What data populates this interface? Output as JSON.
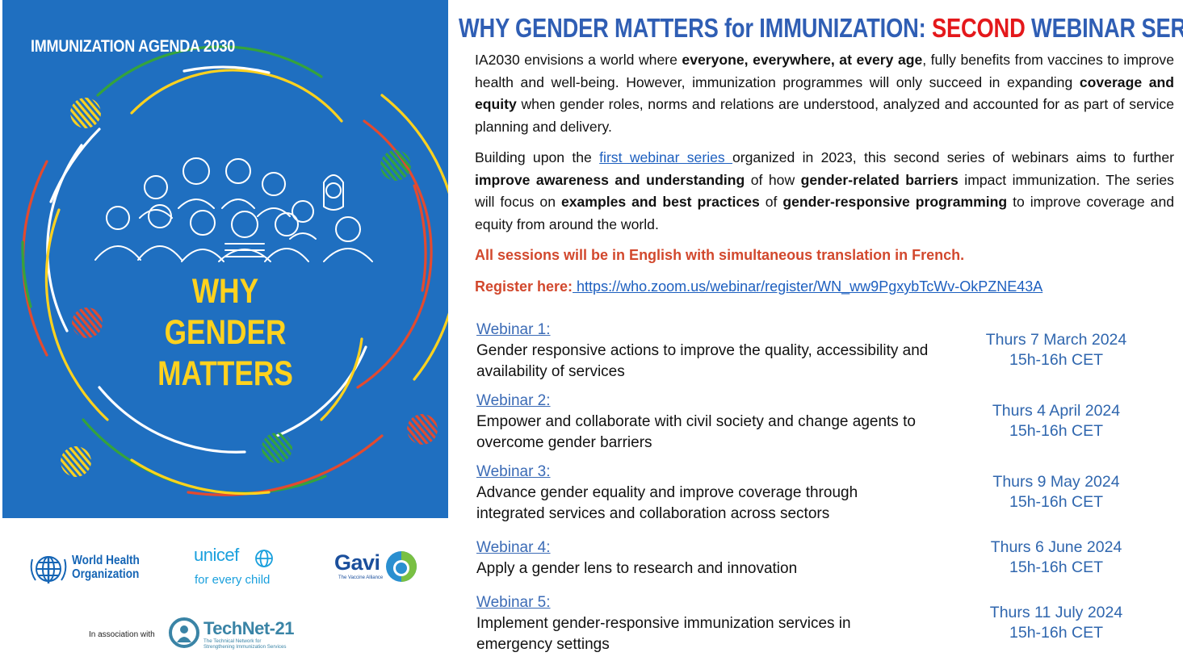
{
  "poster": {
    "agenda": "IMMUNIZATION AGENDA 2030",
    "title_lines": [
      "WHY",
      "GENDER",
      "MATTERS"
    ],
    "colors": {
      "background": "#1f6fc0",
      "yellow": "#ffd21e",
      "green": "#35a33c",
      "red": "#e34a2f"
    }
  },
  "logos": {
    "who": {
      "line1": "World Health",
      "line2": "Organization"
    },
    "unicef": {
      "name": "unicef",
      "tagline": "for every child"
    },
    "gavi": {
      "name": "Gavi",
      "tagline": "The Vaccine Alliance"
    },
    "association": "In association with",
    "technet": {
      "name": "TechNet-21",
      "tagline1": "The Technical Network for",
      "tagline2": "Strengthening Immunization Services"
    }
  },
  "header": {
    "title_part1": "WHY GENDER MATTERS for IMMUNIZATION: ",
    "title_highlight": "SECOND",
    "title_part2": " WEBINAR SERIES"
  },
  "intro": {
    "p1_a": "IA2030 envisions a world where ",
    "p1_b": "everyone, everywhere, at every age",
    "p1_c": ", fully benefits from vaccines to improve health and well-being. However, immunization programmes will only succeed in expanding ",
    "p1_d": "coverage and equity",
    "p1_e": " when gender roles, norms and relations are understood, analyzed and accounted for as part of service planning and delivery.",
    "p2_a": "Building upon the ",
    "p2_link": "first webinar series ",
    "p2_b": "organized in 2023, this second series of webinars aims to further ",
    "p2_c": "improve awareness and understanding",
    "p2_d": " of how ",
    "p2_e": "gender-related barriers",
    "p2_f": " impact immunization. The series will focus on ",
    "p2_g": "examples and best practices",
    "p2_h": " of ",
    "p2_i": "gender-responsive programming",
    "p2_j": " to improve coverage and equity from around the world.",
    "language_note": "All sessions will be in English with simultaneous translation in French.",
    "register_label": "Register here:",
    "register_url": " https://who.zoom.us/webinar/register/WN_ww9PgxybTcWv-OkPZNE43A"
  },
  "webinars": [
    {
      "label": "Webinar 1:",
      "description": "Gender responsive actions to improve the quality, accessibility and availability of services",
      "date": "Thurs 7 March 2024",
      "time": "15h-16h CET"
    },
    {
      "label": "Webinar 2:",
      "description": "Empower and collaborate with civil society and change agents to overcome gender barriers",
      "date": "Thurs 4 April 2024",
      "time": "15h-16h CET"
    },
    {
      "label": "Webinar 3:",
      "description": "Advance gender equality and improve coverage through integrated services and collaboration across sectors",
      "date": "Thurs 9 May 2024",
      "time": "15h-16h CET"
    },
    {
      "label": "Webinar 4:",
      "description": "Apply a gender lens to research and innovation",
      "date": "Thurs 6 June 2024",
      "time": "15h-16h CET"
    },
    {
      "label": "Webinar 5:",
      "description": "Implement gender-responsive immunization services in emergency settings",
      "date": "Thurs 11 July 2024",
      "time": "15h-16h CET"
    }
  ]
}
